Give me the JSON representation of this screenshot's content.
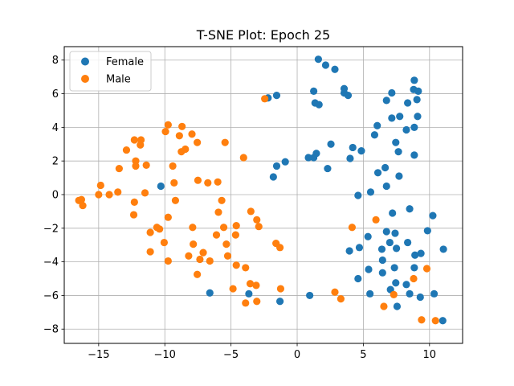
{
  "chart_data": {
    "type": "scatter",
    "title": "T-SNE Plot: Epoch 25",
    "xlabel": "",
    "ylabel": "",
    "xlim": [
      -17.6,
      12.5
    ],
    "ylim": [
      -8.85,
      8.8
    ],
    "xticks": [
      -15,
      -10,
      -5,
      0,
      5,
      10
    ],
    "yticks": [
      -8,
      -6,
      -4,
      -2,
      0,
      2,
      4,
      6,
      8
    ],
    "xtick_labels": [
      "−15",
      "−10",
      "−5",
      "0",
      "5",
      "10"
    ],
    "ytick_labels": [
      "−8",
      "−6",
      "−4",
      "−2",
      "0",
      "2",
      "4",
      "6",
      "8"
    ],
    "grid": true,
    "legend_position": "top-left",
    "series": [
      {
        "name": "Female",
        "color": "#1f77b4",
        "points": [
          [
            1.6,
            8.05
          ],
          [
            2.15,
            7.7
          ],
          [
            2.85,
            7.45
          ],
          [
            1.25,
            6.15
          ],
          [
            3.55,
            6.3
          ],
          [
            3.55,
            6.05
          ],
          [
            3.85,
            5.9
          ],
          [
            1.35,
            5.45
          ],
          [
            1.65,
            5.35
          ],
          [
            -2.2,
            5.75
          ],
          [
            -1.55,
            5.9
          ],
          [
            8.85,
            6.8
          ],
          [
            8.8,
            6.25
          ],
          [
            9.15,
            6.15
          ],
          [
            7.15,
            6.05
          ],
          [
            6.75,
            5.6
          ],
          [
            8.35,
            5.45
          ],
          [
            9.05,
            5.65
          ],
          [
            7.75,
            4.65
          ],
          [
            7.15,
            4.55
          ],
          [
            6.05,
            4.1
          ],
          [
            9.1,
            4.65
          ],
          [
            8.85,
            4.0
          ],
          [
            5.85,
            3.55
          ],
          [
            8.25,
            3.85
          ],
          [
            7.45,
            3.1
          ],
          [
            2.55,
            3.0
          ],
          [
            4.2,
            2.8
          ],
          [
            4.85,
            2.6
          ],
          [
            7.65,
            2.55
          ],
          [
            8.85,
            2.35
          ],
          [
            1.45,
            2.45
          ],
          [
            1.25,
            2.2
          ],
          [
            0.85,
            2.2
          ],
          [
            4.0,
            2.15
          ],
          [
            -1.55,
            1.7
          ],
          [
            -0.9,
            1.95
          ],
          [
            -1.8,
            1.05
          ],
          [
            2.3,
            1.55
          ],
          [
            6.65,
            1.6
          ],
          [
            6.1,
            1.3
          ],
          [
            7.7,
            1.1
          ],
          [
            6.75,
            0.5
          ],
          [
            5.55,
            0.15
          ],
          [
            4.6,
            -0.05
          ],
          [
            -10.3,
            0.5
          ],
          [
            8.5,
            -0.85
          ],
          [
            7.2,
            -1.1
          ],
          [
            10.25,
            -1.25
          ],
          [
            9.85,
            -2.15
          ],
          [
            6.75,
            -2.2
          ],
          [
            7.4,
            -2.3
          ],
          [
            5.35,
            -2.5
          ],
          [
            8.35,
            -2.85
          ],
          [
            7.0,
            -2.85
          ],
          [
            6.4,
            -3.25
          ],
          [
            7.5,
            -3.2
          ],
          [
            11.05,
            -3.25
          ],
          [
            3.95,
            -3.35
          ],
          [
            4.7,
            -3.15
          ],
          [
            9.35,
            -3.5
          ],
          [
            8.9,
            -3.6
          ],
          [
            6.45,
            -3.9
          ],
          [
            5.4,
            -4.45
          ],
          [
            7.35,
            -4.35
          ],
          [
            8.85,
            -4.35
          ],
          [
            6.45,
            -4.65
          ],
          [
            4.6,
            -5.0
          ],
          [
            7.45,
            -5.25
          ],
          [
            8.25,
            -5.35
          ],
          [
            7.05,
            -5.65
          ],
          [
            5.5,
            -5.9
          ],
          [
            8.5,
            -5.9
          ],
          [
            10.35,
            -5.9
          ],
          [
            9.3,
            -6.1
          ],
          [
            -6.6,
            -5.85
          ],
          [
            -3.65,
            -5.9
          ],
          [
            0.95,
            -6.0
          ],
          [
            -1.3,
            -6.35
          ],
          [
            7.55,
            -6.65
          ],
          [
            11.0,
            -7.5
          ]
        ]
      },
      {
        "name": "Male",
        "color": "#ff7f0e",
        "points": [
          [
            -2.45,
            5.7
          ],
          [
            -9.75,
            4.15
          ],
          [
            -8.7,
            4.05
          ],
          [
            -9.95,
            3.75
          ],
          [
            -8.9,
            3.5
          ],
          [
            -7.95,
            3.6
          ],
          [
            -12.3,
            3.25
          ],
          [
            -11.8,
            3.25
          ],
          [
            -11.85,
            2.95
          ],
          [
            -5.45,
            3.1
          ],
          [
            -7.55,
            3.1
          ],
          [
            -12.9,
            2.65
          ],
          [
            -8.45,
            2.7
          ],
          [
            -8.75,
            2.55
          ],
          [
            -4.05,
            2.2
          ],
          [
            -12.2,
            2.0
          ],
          [
            -12.2,
            1.7
          ],
          [
            -11.4,
            1.75
          ],
          [
            -9.4,
            1.7
          ],
          [
            -13.45,
            1.55
          ],
          [
            -7.5,
            0.85
          ],
          [
            -9.3,
            0.7
          ],
          [
            -6.75,
            0.7
          ],
          [
            -6.0,
            0.75
          ],
          [
            -14.85,
            0.55
          ],
          [
            -13.55,
            0.15
          ],
          [
            -11.5,
            0.1
          ],
          [
            -15.0,
            0.0
          ],
          [
            -14.2,
            0.0
          ],
          [
            -16.5,
            -0.35
          ],
          [
            -16.3,
            -0.3
          ],
          [
            -16.2,
            -0.65
          ],
          [
            -9.2,
            -0.35
          ],
          [
            -5.7,
            -0.35
          ],
          [
            -12.3,
            -0.45
          ],
          [
            -5.95,
            -1.05
          ],
          [
            -3.5,
            -1.0
          ],
          [
            -12.35,
            -1.2
          ],
          [
            -9.75,
            -1.35
          ],
          [
            -3.05,
            -1.5
          ],
          [
            5.95,
            -1.5
          ],
          [
            -4.6,
            -1.85
          ],
          [
            -2.9,
            -1.9
          ],
          [
            -7.9,
            -1.95
          ],
          [
            4.15,
            -1.95
          ],
          [
            -10.6,
            -1.95
          ],
          [
            -10.4,
            -2.05
          ],
          [
            -5.55,
            -1.95
          ],
          [
            -11.1,
            -2.25
          ],
          [
            -6.1,
            -2.4
          ],
          [
            -4.65,
            -2.4
          ],
          [
            -10.05,
            -2.85
          ],
          [
            -7.85,
            -2.95
          ],
          [
            -5.35,
            -2.95
          ],
          [
            -1.6,
            -2.9
          ],
          [
            -1.3,
            -3.15
          ],
          [
            -11.1,
            -3.4
          ],
          [
            -7.1,
            -3.45
          ],
          [
            -8.2,
            -3.65
          ],
          [
            -5.25,
            -3.65
          ],
          [
            -9.75,
            -3.95
          ],
          [
            -7.35,
            -3.85
          ],
          [
            -6.6,
            -3.95
          ],
          [
            -4.6,
            -4.2
          ],
          [
            -3.9,
            -4.35
          ],
          [
            9.8,
            -4.4
          ],
          [
            -7.55,
            -4.75
          ],
          [
            8.8,
            -5.0
          ],
          [
            -3.55,
            -5.3
          ],
          [
            -3.1,
            -5.4
          ],
          [
            -4.85,
            -5.6
          ],
          [
            -1.25,
            -5.6
          ],
          [
            2.85,
            -5.8
          ],
          [
            3.3,
            -6.2
          ],
          [
            7.3,
            -5.95
          ],
          [
            -3.9,
            -6.45
          ],
          [
            -3.05,
            -6.35
          ],
          [
            6.55,
            -6.65
          ],
          [
            9.4,
            -7.45
          ],
          [
            10.45,
            -7.5
          ]
        ]
      }
    ]
  }
}
